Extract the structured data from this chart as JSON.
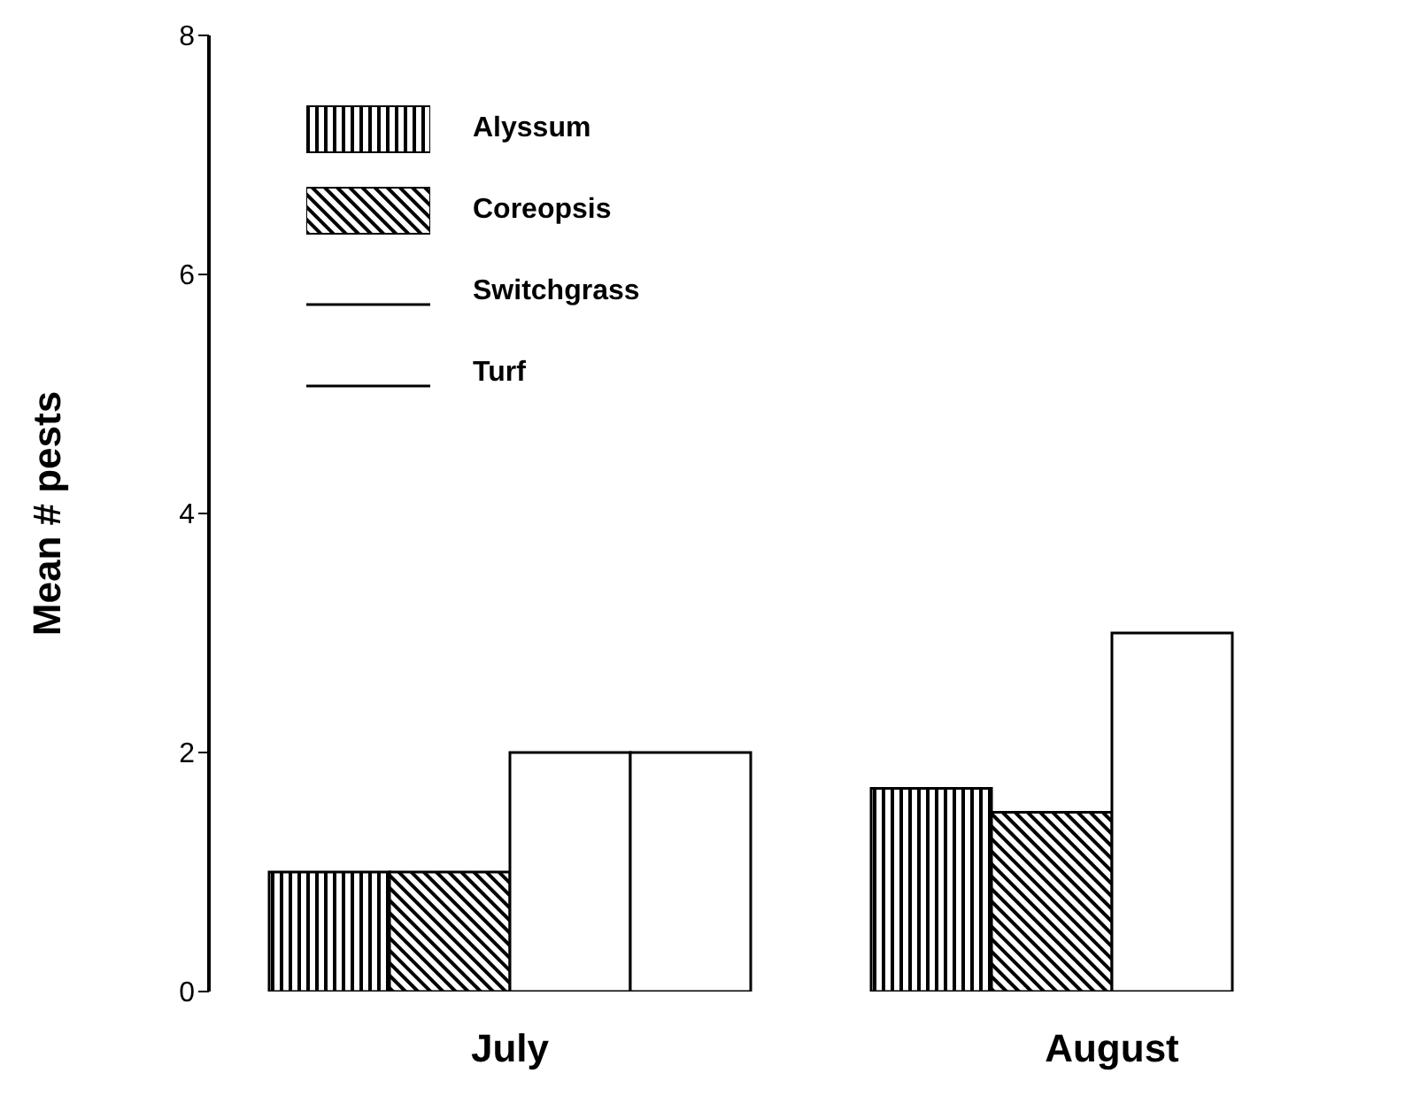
{
  "chart_data": {
    "type": "bar",
    "ylabel": "Mean # pests",
    "categories": [
      "July",
      "August"
    ],
    "series": [
      {
        "name": "Alyssum",
        "color": "#000000",
        "values": [
          1.0,
          1.7
        ]
      },
      {
        "name": "Coreopsis",
        "color": "#000000",
        "values": [
          1.0,
          1.5
        ]
      },
      {
        "name": "Switchgrass",
        "color": "#ffffff",
        "values": [
          2.0,
          3.0
        ]
      },
      {
        "name": "Turf",
        "color": "#ffffff",
        "values": [
          2.0,
          null
        ]
      }
    ],
    "ylim": [
      0,
      8
    ],
    "yticks": [
      0,
      2,
      4,
      6,
      8
    ],
    "legend": "top left"
  }
}
